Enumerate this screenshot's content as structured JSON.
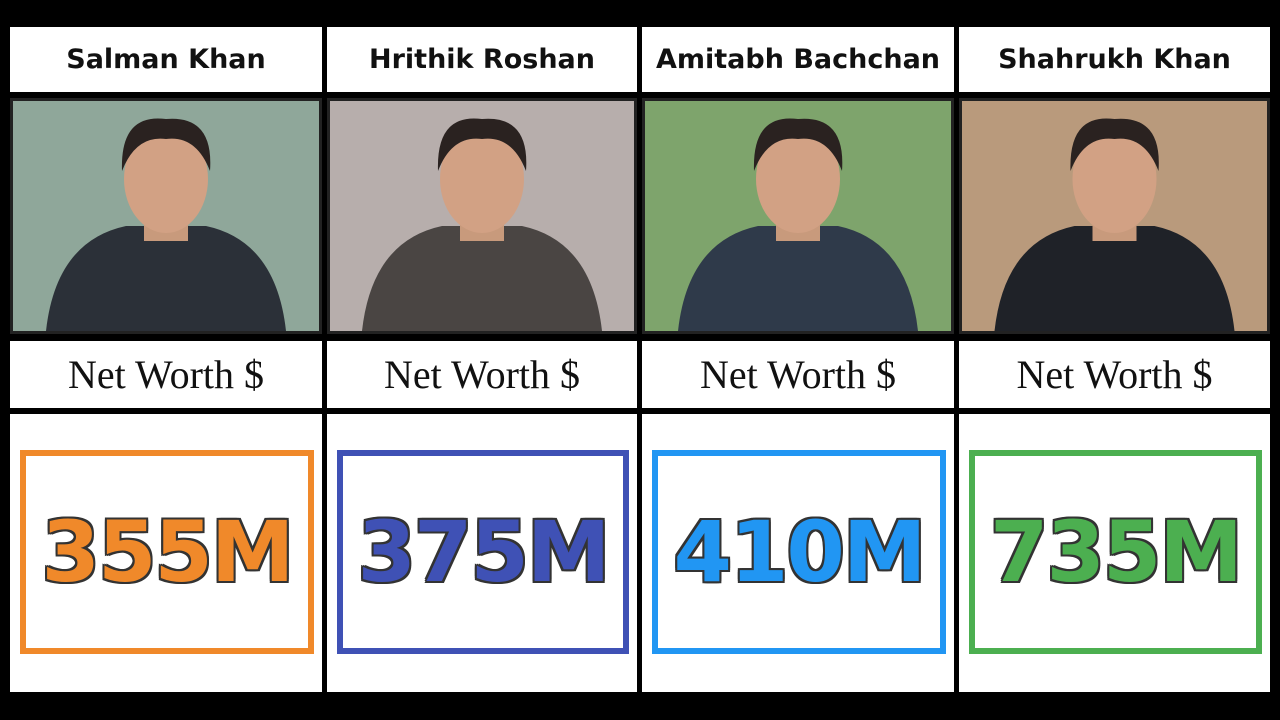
{
  "columns": [
    {
      "name": "Salman Khan",
      "label": "Net Worth $",
      "value": "355M",
      "color": "#f0892a",
      "photo_bg": "#8fa79a",
      "shirt": "#2b3038"
    },
    {
      "name": "Hrithik Roshan",
      "label": "Net Worth $",
      "value": "375M",
      "color": "#3f51b5",
      "photo_bg": "#b7aeac",
      "shirt": "#4a4543"
    },
    {
      "name": "Amitabh Bachchan",
      "label": "Net Worth $",
      "value": "410M",
      "color": "#2196f3",
      "photo_bg": "#7ea46c",
      "shirt": "#2f3a4a"
    },
    {
      "name": "Shahrukh Khan",
      "label": "Net Worth $",
      "value": "735M",
      "color": "#4caf50",
      "photo_bg": "#b99a7c",
      "shirt": "#1f2228"
    }
  ]
}
